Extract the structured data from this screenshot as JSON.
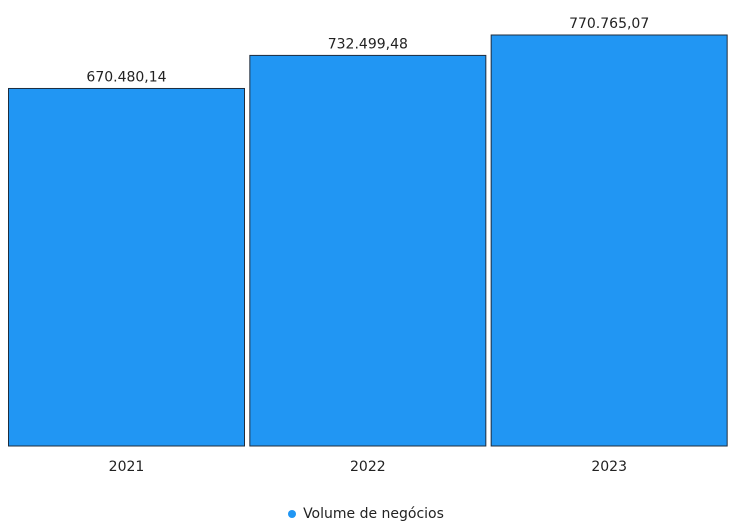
{
  "chart_data": {
    "type": "bar",
    "title": "",
    "xlabel": "",
    "ylabel": "",
    "categories": [
      "2021",
      "2022",
      "2023"
    ],
    "series": [
      {
        "name": "Volume de negócios",
        "values": [
          670480.14,
          732499.48,
          770765.07
        ],
        "value_labels": [
          "670.480,14",
          "732.499,48",
          "770.765,07"
        ],
        "color": "#2196F3"
      }
    ],
    "ylim": [
      0,
      770765.07
    ],
    "grid": false,
    "legend_position": "bottom-center"
  }
}
